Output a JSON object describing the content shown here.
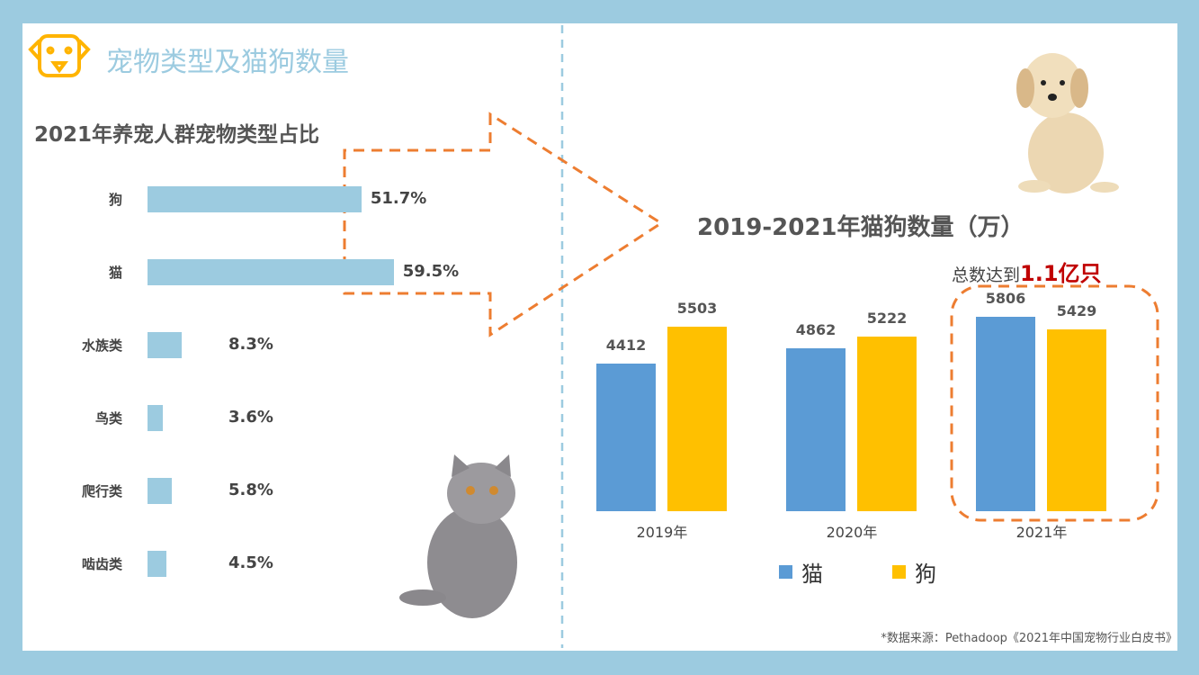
{
  "header": {
    "title": "宠物类型及猫狗数量",
    "icon": "dog-face-icon",
    "icon_color": "#ffb400"
  },
  "source": "*数据来源：Pethadoop《2021年中国宠物行业白皮书》",
  "colors": {
    "frame": "#9ccbe0",
    "cat": "#5b9bd5",
    "dog": "#ffc000",
    "arrow": "#ed7d31",
    "highlight": "#c00000"
  },
  "chart_data": [
    {
      "type": "bar",
      "orientation": "horizontal",
      "title": "2021年养宠人群宠物类型占比",
      "categories": [
        "狗",
        "猫",
        "水族类",
        "鸟类",
        "爬行类",
        "啮齿类"
      ],
      "values": [
        51.7,
        59.5,
        8.3,
        3.6,
        5.8,
        4.5
      ],
      "labels": [
        "51.7%",
        "59.5%",
        "8.3%",
        "3.6%",
        "5.8%",
        "4.5%"
      ],
      "unit": "%",
      "grid": false
    },
    {
      "type": "bar",
      "title": "2019-2021年猫狗数量（万）",
      "annotation_prefix": "总数达到",
      "annotation_highlight": "1.1亿只",
      "categories": [
        "2019年",
        "2020年",
        "2021年"
      ],
      "series": [
        {
          "name": "猫",
          "values": [
            4412,
            4862,
            5806
          ]
        },
        {
          "name": "狗",
          "values": [
            5503,
            5222,
            5429
          ]
        }
      ],
      "ylim": [
        0,
        6000
      ],
      "grid": false,
      "legend": "bottom"
    }
  ]
}
